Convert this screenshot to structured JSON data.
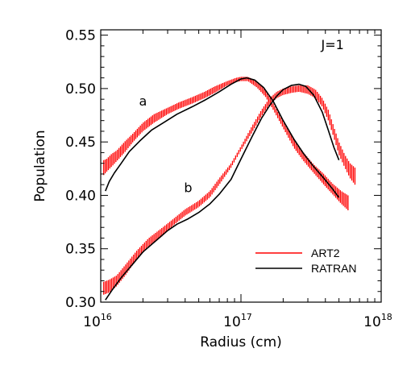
{
  "chart_data": {
    "type": "line",
    "xlabel": "Radius (cm)",
    "ylabel": "Population",
    "xscale": "log",
    "xlim": [
      1e+16,
      1e+18
    ],
    "ylim": [
      0.3,
      0.555
    ],
    "x_ticks": [
      {
        "value": 1e+16,
        "base": "10",
        "exp": "16"
      },
      {
        "value": 1e+17,
        "base": "10",
        "exp": "17"
      },
      {
        "value": 1e+18,
        "base": "10",
        "exp": "18"
      }
    ],
    "y_ticks": [
      "0.30",
      "0.35",
      "0.40",
      "0.45",
      "0.50",
      "0.55"
    ],
    "annotations": [
      {
        "text": "J=1",
        "x": 4.5e+17,
        "y": 0.537
      },
      {
        "text": "a",
        "x": 2e+16,
        "y": 0.484
      },
      {
        "text": "b",
        "x": 4.2e+16,
        "y": 0.403
      }
    ],
    "legend": {
      "position": "bottom-right",
      "entries": [
        {
          "label": "ART2",
          "color": "#ff0000"
        },
        {
          "label": "RATRAN",
          "color": "#000000"
        }
      ]
    },
    "series": [
      {
        "name": "ART2",
        "style": "error-bars",
        "color": "#ff0000",
        "curves": [
          {
            "label": "a",
            "x": [
              1.05e+16,
              1.1e+16,
              1.2e+16,
              1.3e+16,
              1.5e+16,
              1.7e+16,
              2e+16,
              2.4e+16,
              3e+16,
              3.6e+16,
              4.5e+16,
              5.5e+16,
              6.5e+16,
              8e+16,
              9.2e+16,
              1e+17,
              1.12e+17,
              1.3e+17,
              1.5e+17,
              1.7e+17,
              2e+17,
              2.4e+17,
              2.8e+17,
              3.3e+17,
              3.9e+17,
              4.5e+17,
              5.2e+17,
              5.8e+17
            ],
            "y": [
              0.426,
              0.428,
              0.433,
              0.437,
              0.446,
              0.454,
              0.464,
              0.472,
              0.479,
              0.484,
              0.489,
              0.494,
              0.499,
              0.505,
              0.508,
              0.509,
              0.509,
              0.504,
              0.495,
              0.483,
              0.466,
              0.448,
              0.436,
              0.425,
              0.415,
              0.406,
              0.398,
              0.393
            ],
            "err": [
              0.007,
              0.006,
              0.006,
              0.005,
              0.005,
              0.004,
              0.004,
              0.004,
              0.003,
              0.003,
              0.003,
              0.003,
              0.003,
              0.002,
              0.002,
              0.002,
              0.002,
              0.003,
              0.003,
              0.003,
              0.003,
              0.004,
              0.004,
              0.004,
              0.005,
              0.005,
              0.006,
              0.007
            ]
          },
          {
            "label": "b",
            "x": [
              1.05e+16,
              1.15e+16,
              1.3e+16,
              1.5e+16,
              1.8e+16,
              2.2e+16,
              2.7e+16,
              3.3e+16,
              4e+16,
              5e+16,
              6e+16,
              7e+16,
              8.5e+16,
              1e+17,
              1.2e+17,
              1.4e+17,
              1.6e+17,
              1.8e+17,
              2e+17,
              2.3e+17,
              2.6e+17,
              3e+17,
              3.4e+17,
              3.8e+17,
              4.2e+17,
              4.6e+17,
              5e+17,
              5.5e+17,
              6e+17,
              6.5e+17
            ],
            "y": [
              0.313,
              0.315,
              0.32,
              0.33,
              0.344,
              0.356,
              0.365,
              0.375,
              0.384,
              0.392,
              0.401,
              0.413,
              0.428,
              0.444,
              0.462,
              0.477,
              0.488,
              0.494,
              0.497,
              0.499,
              0.5,
              0.499,
              0.495,
              0.487,
              0.475,
              0.459,
              0.444,
              0.432,
              0.423,
              0.418
            ],
            "err": [
              0.006,
              0.006,
              0.005,
              0.005,
              0.004,
              0.004,
              0.004,
              0.003,
              0.003,
              0.003,
              0.003,
              0.003,
              0.002,
              0.002,
              0.003,
              0.003,
              0.003,
              0.003,
              0.003,
              0.003,
              0.003,
              0.004,
              0.004,
              0.004,
              0.005,
              0.005,
              0.006,
              0.006,
              0.007,
              0.008
            ]
          }
        ]
      },
      {
        "name": "RATRAN",
        "style": "line",
        "color": "#000000",
        "curves": [
          {
            "label": "a",
            "x": [
              1.08e+16,
              1.15e+16,
              1.25e+16,
              1.4e+16,
              1.6e+16,
              1.9e+16,
              2.3e+16,
              2.8e+16,
              3.5e+16,
              4.5e+16,
              5.5e+16,
              7e+16,
              8.5e+16,
              1e+17,
              1.1e+17,
              1.25e+17,
              1.45e+17,
              1.7e+17,
              2e+17,
              2.4e+17,
              2.8e+17,
              3.3e+17,
              3.9e+17,
              4.5e+17,
              5e+17
            ],
            "y": [
              0.404,
              0.413,
              0.421,
              0.43,
              0.441,
              0.451,
              0.461,
              0.468,
              0.476,
              0.483,
              0.489,
              0.497,
              0.504,
              0.509,
              0.51,
              0.508,
              0.501,
              0.488,
              0.47,
              0.452,
              0.439,
              0.427,
              0.416,
              0.406,
              0.398
            ]
          },
          {
            "label": "b",
            "x": [
              1.08e+16,
              1.2e+16,
              1.4e+16,
              1.7e+16,
              2e+16,
              2.5e+16,
              3e+16,
              3.5e+16,
              4.2e+16,
              5e+16,
              6e+16,
              7e+16,
              8.5e+16,
              1e+17,
              1.2e+17,
              1.4e+17,
              1.6e+17,
              1.8e+17,
              2e+17,
              2.3e+17,
              2.6e+17,
              2.9e+17,
              3.3e+17,
              3.8e+17,
              4.2e+17,
              4.6e+17,
              5e+17
            ],
            "y": [
              0.302,
              0.311,
              0.323,
              0.336,
              0.347,
              0.358,
              0.367,
              0.373,
              0.378,
              0.384,
              0.392,
              0.401,
              0.415,
              0.434,
              0.455,
              0.472,
              0.484,
              0.493,
              0.499,
              0.503,
              0.504,
              0.502,
              0.494,
              0.478,
              0.461,
              0.445,
              0.433
            ]
          }
        ]
      }
    ]
  }
}
